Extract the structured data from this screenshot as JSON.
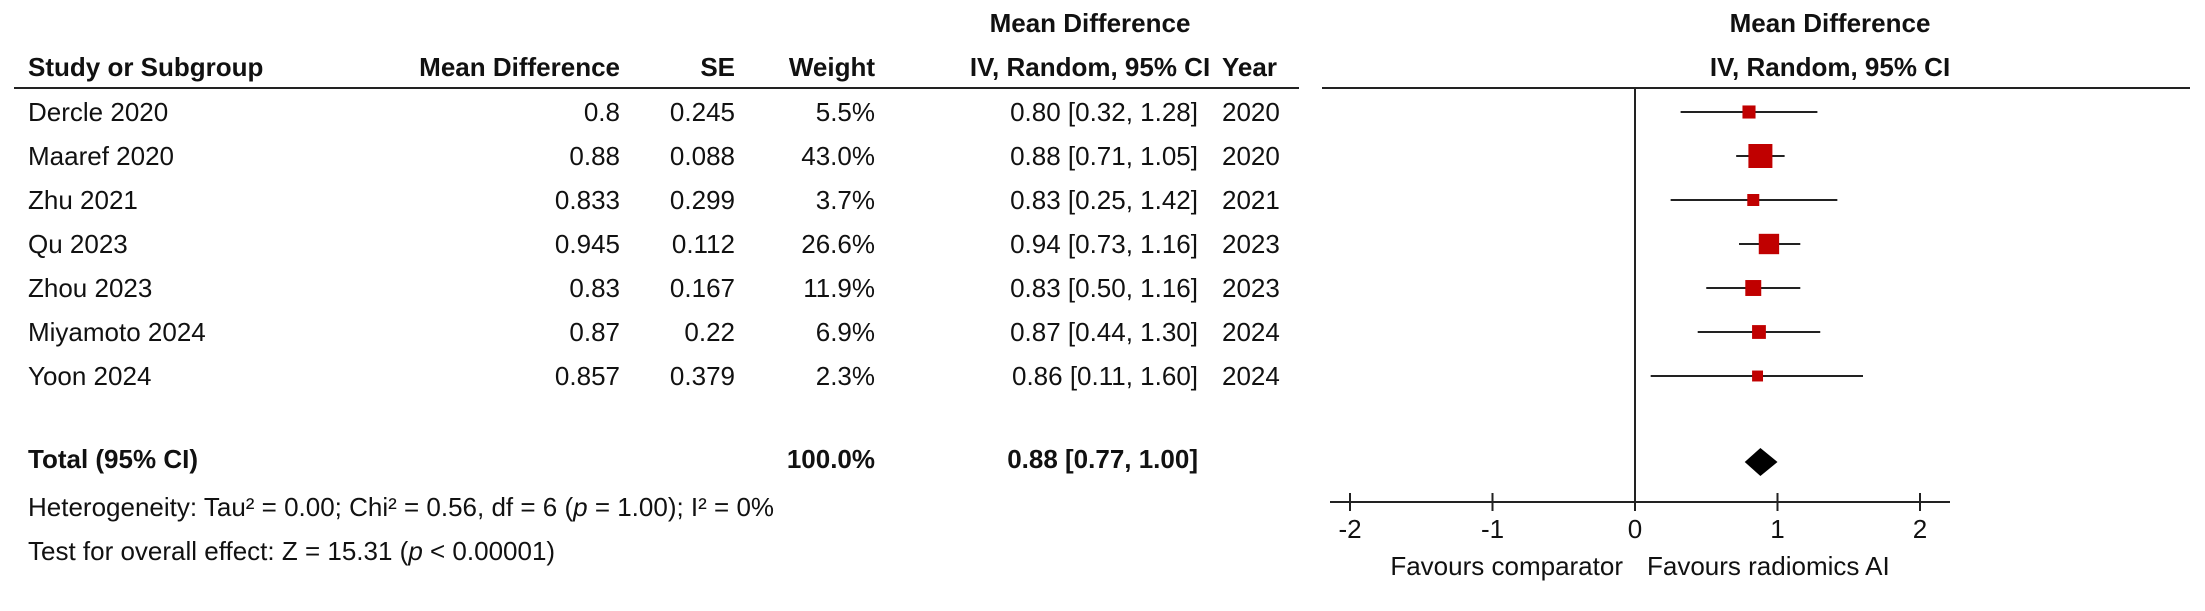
{
  "headers": {
    "study": "Study or Subgroup",
    "md": "Mean Difference",
    "se": "SE",
    "weight": "Weight",
    "ci_top": "Mean Difference",
    "ci_bottom": "IV, Random, 95% CI",
    "year": "Year",
    "plot_top": "Mean Difference",
    "plot_bottom": "IV, Random, 95% CI"
  },
  "studies": [
    {
      "name": "Dercle 2020",
      "md": "0.8",
      "se": "0.245",
      "weight": "5.5%",
      "ci": "0.80 [0.32, 1.28]",
      "year": "2020"
    },
    {
      "name": "Maaref 2020",
      "md": "0.88",
      "se": "0.088",
      "weight": "43.0%",
      "ci": "0.88 [0.71, 1.05]",
      "year": "2020"
    },
    {
      "name": "Zhu 2021",
      "md": "0.833",
      "se": "0.299",
      "weight": "3.7%",
      "ci": "0.83 [0.25, 1.42]",
      "year": "2021"
    },
    {
      "name": "Qu 2023",
      "md": "0.945",
      "se": "0.112",
      "weight": "26.6%",
      "ci": "0.94 [0.73, 1.16]",
      "year": "2023"
    },
    {
      "name": "Zhou 2023",
      "md": "0.83",
      "se": "0.167",
      "weight": "11.9%",
      "ci": "0.83 [0.50, 1.16]",
      "year": "2023"
    },
    {
      "name": "Miyamoto 2024",
      "md": "0.87",
      "se": "0.22",
      "weight": "6.9%",
      "ci": "0.87 [0.44, 1.30]",
      "year": "2024"
    },
    {
      "name": "Yoon 2024",
      "md": "0.857",
      "se": "0.379",
      "weight": "2.3%",
      "ci": "0.86 [0.11, 1.60]",
      "year": "2024"
    }
  ],
  "total": {
    "label": "Total (95% CI)",
    "weight": "100.0%",
    "ci": "0.88 [0.77, 1.00]"
  },
  "heterogeneity": {
    "prefix": "Heterogeneity: Tau² = 0.00; Chi² = 0.56, df = 6 (",
    "p": "p",
    "suffix": " = 1.00); I² = 0%"
  },
  "overall": {
    "prefix": "Test for overall effect: Z = 15.31 (",
    "p": "p",
    "suffix": " < 0.00001)"
  },
  "axis": {
    "left_label": "Favours comparator",
    "right_label": "Favours radiomics AI"
  },
  "colors": {
    "marker": "#c00000",
    "line": "#222222",
    "diamond": "#000000"
  },
  "chart_data": {
    "type": "forest",
    "xlim": [
      -2,
      2
    ],
    "ticks": [
      -2,
      -1,
      0,
      1,
      2
    ],
    "tick_labels": [
      "-2",
      "-1",
      "0",
      "1",
      "2"
    ],
    "points": [
      {
        "name": "Dercle 2020",
        "est": 0.8,
        "lo": 0.32,
        "hi": 1.28,
        "weight": 5.5
      },
      {
        "name": "Maaref 2020",
        "est": 0.88,
        "lo": 0.71,
        "hi": 1.05,
        "weight": 43.0
      },
      {
        "name": "Zhu 2021",
        "est": 0.83,
        "lo": 0.25,
        "hi": 1.42,
        "weight": 3.7
      },
      {
        "name": "Qu 2023",
        "est": 0.94,
        "lo": 0.73,
        "hi": 1.16,
        "weight": 26.6
      },
      {
        "name": "Zhou 2023",
        "est": 0.83,
        "lo": 0.5,
        "hi": 1.16,
        "weight": 11.9
      },
      {
        "name": "Miyamoto 2024",
        "est": 0.87,
        "lo": 0.44,
        "hi": 1.3,
        "weight": 6.9
      },
      {
        "name": "Yoon 2024",
        "est": 0.86,
        "lo": 0.11,
        "hi": 1.6,
        "weight": 2.3
      }
    ],
    "total": {
      "est": 0.88,
      "lo": 0.77,
      "hi": 1.0
    }
  }
}
